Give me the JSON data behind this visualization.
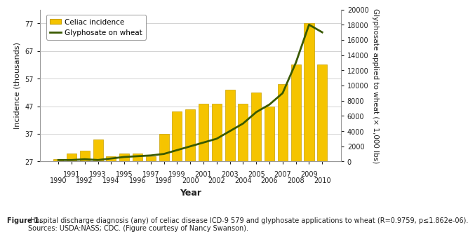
{
  "years": [
    1990,
    1991,
    1992,
    1993,
    1994,
    1995,
    1996,
    1997,
    1998,
    1999,
    2000,
    2001,
    2002,
    2003,
    2004,
    2005,
    2006,
    2007,
    2008,
    2009,
    2010
  ],
  "celiac": [
    28,
    30,
    31,
    35,
    29,
    30,
    30,
    29,
    37,
    45,
    46,
    48,
    48,
    53,
    48,
    52,
    47,
    55,
    62,
    77,
    62
  ],
  "glyphosate": [
    200,
    200,
    300,
    200,
    400,
    600,
    700,
    800,
    1000,
    1500,
    2000,
    2500,
    3000,
    4000,
    5000,
    6500,
    7500,
    9000,
    13000,
    18000,
    17000
  ],
  "bar_color": "#F5C400",
  "bar_edge_color": "#C8A000",
  "line_color": "#3A5A00",
  "background_color": "#FFFFFF",
  "grid_color": "#CCCCCC",
  "ylabel_left": "Incidence (thousands)",
  "ylabel_right": "Glyphosate applied to wheat (× 1,000 lbs)",
  "xlabel": "Year",
  "ylim_left": [
    27,
    82
  ],
  "ylim_right": [
    0,
    20000
  ],
  "yticks_left": [
    27,
    37,
    47,
    57,
    67,
    77
  ],
  "yticks_right": [
    0,
    2000,
    4000,
    6000,
    8000,
    10000,
    12000,
    14000,
    16000,
    18000,
    20000
  ],
  "legend_celiac": "Celiac incidence",
  "legend_glyphosate": "Glyphosate on wheat",
  "caption_bold": "Figure 1.",
  "caption_normal": " Hospital discharge diagnosis (any) of celiac disease ICD-9 579 and glyphosate applications to wheat (R=0.9759, p≤1.862e-06).\nSources: USDA:NASS; CDC. (Figure courtesy of Nancy Swanson).",
  "axis_fontsize": 8,
  "tick_fontsize": 7,
  "caption_fontsize": 7
}
